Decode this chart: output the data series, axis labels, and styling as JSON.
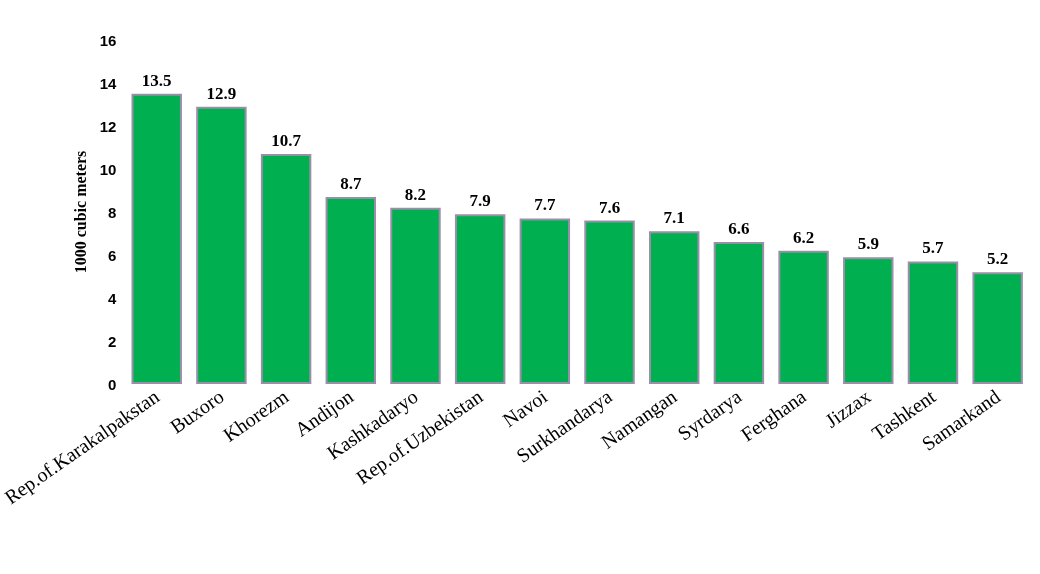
{
  "chart_data": {
    "type": "bar",
    "ylabel": "1000 cubic meters",
    "categories": [
      "Rep.of.Karakalpakstan",
      "Buxoro",
      "Khorezm",
      "Andijon",
      "Kashkadaryo",
      "Rep.of.Uzbekistan",
      "Navoi",
      "Surkhandarya",
      "Namangan",
      "Syrdarya",
      "Ferghana",
      "Jizzax",
      "Tashkent",
      "Samarkand"
    ],
    "values": [
      13.5,
      12.9,
      10.7,
      8.7,
      8.2,
      7.9,
      7.7,
      7.6,
      7.1,
      6.6,
      6.2,
      5.9,
      5.7,
      5.2
    ],
    "color": "#00b050",
    "ylim": [
      0,
      16
    ],
    "yticks": [
      0,
      2,
      4,
      6,
      8,
      10,
      12,
      14,
      16
    ],
    "grid": false,
    "data_labels": true
  }
}
